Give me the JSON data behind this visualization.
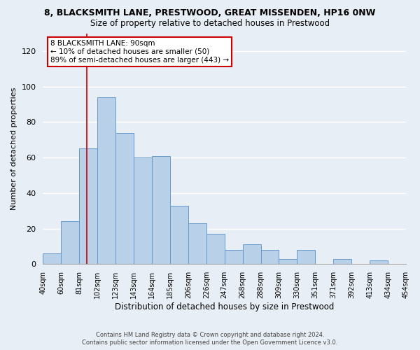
{
  "title1": "8, BLACKSMITH LANE, PRESTWOOD, GREAT MISSENDEN, HP16 0NW",
  "title2": "Size of property relative to detached houses in Prestwood",
  "xlabel": "Distribution of detached houses by size in Prestwood",
  "ylabel": "Number of detached properties",
  "categories": [
    "40sqm",
    "60sqm",
    "81sqm",
    "102sqm",
    "123sqm",
    "143sqm",
    "164sqm",
    "185sqm",
    "206sqm",
    "226sqm",
    "247sqm",
    "268sqm",
    "288sqm",
    "309sqm",
    "330sqm",
    "351sqm",
    "371sqm",
    "392sqm",
    "413sqm",
    "434sqm",
    "454sqm"
  ],
  "heights": [
    6,
    24,
    65,
    94,
    74,
    60,
    61,
    33,
    23,
    17,
    8,
    11,
    8,
    3,
    8,
    0,
    3,
    0,
    2,
    0
  ],
  "bar_color": "#b8d0e8",
  "bar_edge_color": "#6699cc",
  "annotation_text": "8 BLACKSMITH LANE: 90sqm\n← 10% of detached houses are smaller (50)\n89% of semi-detached houses are larger (443) →",
  "ann_edge_color": "#cc0000",
  "vline_color": "#cc0000",
  "ylim": [
    0,
    130
  ],
  "yticks": [
    0,
    20,
    40,
    60,
    80,
    100,
    120
  ],
  "footer1": "Contains HM Land Registry data © Crown copyright and database right 2024.",
  "footer2": "Contains public sector information licensed under the Open Government Licence v3.0.",
  "bg_color": "#e8eef5",
  "grid_color": "#ffffff"
}
